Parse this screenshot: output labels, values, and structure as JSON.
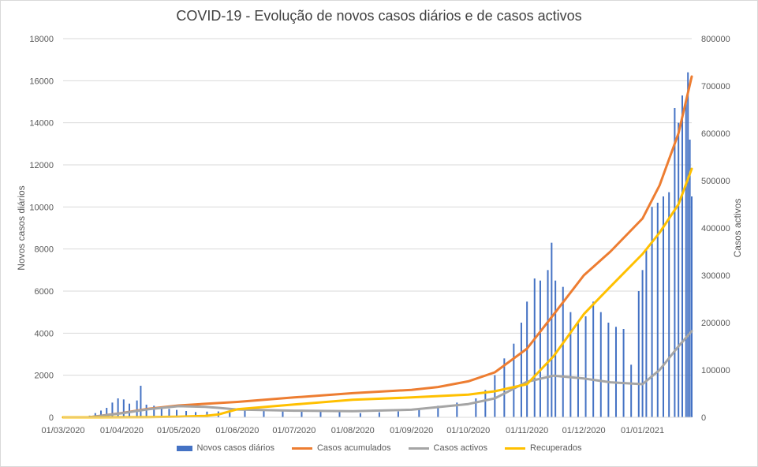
{
  "chart_data": {
    "type": "bar+line",
    "title": "COVID-19 - Evolução de novos casos diários e de casos activos",
    "ylabel_left": "Novos casos diários",
    "ylabel_right": "Casos activos",
    "ylim_left": [
      0,
      18000
    ],
    "ylim_right": [
      0,
      800000
    ],
    "left_ticks": [
      "0",
      "2000",
      "4000",
      "6000",
      "8000",
      "10000",
      "12000",
      "14000",
      "16000",
      "18000"
    ],
    "right_ticks": [
      "0",
      "100000",
      "200000",
      "300000",
      "400000",
      "500000",
      "600000",
      "700000",
      "800000"
    ],
    "x_range": [
      "01/03/2020",
      "27/01/2021"
    ],
    "x_ticks": [
      "01/03/2020",
      "01/04/2020",
      "01/05/2020",
      "01/06/2020",
      "01/07/2020",
      "01/08/2020",
      "01/09/2020",
      "01/10/2020",
      "01/11/2020",
      "01/12/2020",
      "01/01/2021"
    ],
    "colors": {
      "bars": "#4472c4",
      "accumulated": "#ed7d31",
      "active": "#a5a5a5",
      "recovered": "#ffc000",
      "grid": "#d9d9d9",
      "text": "#595959",
      "title": "#404040"
    },
    "legend": [
      "Novos casos diários",
      "Casos acumulados",
      "Casos activos",
      "Recuperados"
    ],
    "series": [
      {
        "name": "Novos casos diários",
        "axis": "left",
        "kind": "bar",
        "points": [
          [
            "02/03/2020",
            2
          ],
          [
            "10/03/2020",
            8
          ],
          [
            "15/03/2020",
            80
          ],
          [
            "18/03/2020",
            200
          ],
          [
            "21/03/2020",
            320
          ],
          [
            "24/03/2020",
            450
          ],
          [
            "27/03/2020",
            700
          ],
          [
            "30/03/2020",
            900
          ],
          [
            "02/04/2020",
            850
          ],
          [
            "05/04/2020",
            650
          ],
          [
            "09/04/2020",
            800
          ],
          [
            "11/04/2020",
            1500
          ],
          [
            "14/04/2020",
            600
          ],
          [
            "18/04/2020",
            550
          ],
          [
            "22/04/2020",
            500
          ],
          [
            "26/04/2020",
            400
          ],
          [
            "30/04/2020",
            350
          ],
          [
            "05/05/2020",
            300
          ],
          [
            "10/05/2020",
            250
          ],
          [
            "16/05/2020",
            270
          ],
          [
            "22/05/2020",
            280
          ],
          [
            "28/05/2020",
            300
          ],
          [
            "05/06/2020",
            330
          ],
          [
            "15/06/2020",
            350
          ],
          [
            "25/06/2020",
            370
          ],
          [
            "05/07/2020",
            360
          ],
          [
            "15/07/2020",
            320
          ],
          [
            "25/07/2020",
            250
          ],
          [
            "05/08/2020",
            200
          ],
          [
            "15/08/2020",
            240
          ],
          [
            "25/08/2020",
            280
          ],
          [
            "05/09/2020",
            400
          ],
          [
            "15/09/2020",
            550
          ],
          [
            "25/09/2020",
            700
          ],
          [
            "05/10/2020",
            900
          ],
          [
            "10/10/2020",
            1300
          ],
          [
            "15/10/2020",
            2000
          ],
          [
            "20/10/2020",
            2800
          ],
          [
            "25/10/2020",
            3500
          ],
          [
            "29/10/2020",
            4500
          ],
          [
            "01/11/2020",
            5500
          ],
          [
            "05/11/2020",
            6600
          ],
          [
            "08/11/2020",
            6500
          ],
          [
            "12/11/2020",
            7000
          ],
          [
            "14/11/2020",
            8300
          ],
          [
            "16/11/2020",
            6500
          ],
          [
            "20/11/2020",
            6200
          ],
          [
            "24/11/2020",
            5000
          ],
          [
            "28/11/2020",
            4500
          ],
          [
            "02/12/2020",
            4800
          ],
          [
            "06/12/2020",
            5500
          ],
          [
            "10/12/2020",
            5000
          ],
          [
            "14/12/2020",
            4500
          ],
          [
            "18/12/2020",
            4300
          ],
          [
            "22/12/2020",
            4200
          ],
          [
            "26/12/2020",
            2500
          ],
          [
            "30/12/2020",
            6000
          ],
          [
            "01/01/2021",
            7000
          ],
          [
            "03/01/2021",
            8000
          ],
          [
            "06/01/2021",
            10000
          ],
          [
            "09/01/2021",
            10200
          ],
          [
            "12/01/2021",
            10500
          ],
          [
            "15/01/2021",
            10700
          ],
          [
            "18/01/2021",
            14700
          ],
          [
            "20/01/2021",
            14000
          ],
          [
            "22/01/2021",
            15300
          ],
          [
            "24/01/2021",
            15000
          ],
          [
            "25/01/2021",
            16400
          ],
          [
            "26/01/2021",
            13200
          ],
          [
            "27/01/2021",
            10500
          ]
        ]
      },
      {
        "name": "Casos acumulados",
        "axis": "right",
        "kind": "line",
        "points": [
          [
            "01/03/2020",
            0
          ],
          [
            "15/03/2020",
            250
          ],
          [
            "01/04/2020",
            9000
          ],
          [
            "15/04/2020",
            18000
          ],
          [
            "01/05/2020",
            25000
          ],
          [
            "15/05/2020",
            28500
          ],
          [
            "01/06/2020",
            32500
          ],
          [
            "01/07/2020",
            42000
          ],
          [
            "01/08/2020",
            51000
          ],
          [
            "01/09/2020",
            58000
          ],
          [
            "15/09/2020",
            64000
          ],
          [
            "01/10/2020",
            76000
          ],
          [
            "15/10/2020",
            95000
          ],
          [
            "01/11/2020",
            145000
          ],
          [
            "15/11/2020",
            217000
          ],
          [
            "01/12/2020",
            300000
          ],
          [
            "15/12/2020",
            350000
          ],
          [
            "01/01/2021",
            420000
          ],
          [
            "10/01/2021",
            490000
          ],
          [
            "20/01/2021",
            600000
          ],
          [
            "27/01/2021",
            720000
          ]
        ]
      },
      {
        "name": "Casos activos",
        "axis": "right",
        "kind": "line",
        "points": [
          [
            "01/03/2020",
            0
          ],
          [
            "15/03/2020",
            200
          ],
          [
            "01/04/2020",
            8500
          ],
          [
            "15/04/2020",
            17000
          ],
          [
            "01/05/2020",
            23500
          ],
          [
            "15/05/2020",
            22000
          ],
          [
            "22/05/2020",
            20000
          ],
          [
            "01/06/2020",
            16500
          ],
          [
            "01/07/2020",
            14000
          ],
          [
            "01/08/2020",
            13000
          ],
          [
            "01/09/2020",
            16000
          ],
          [
            "01/10/2020",
            28000
          ],
          [
            "15/10/2020",
            40000
          ],
          [
            "01/11/2020",
            75000
          ],
          [
            "15/11/2020",
            88000
          ],
          [
            "01/12/2020",
            82000
          ],
          [
            "15/12/2020",
            74000
          ],
          [
            "01/01/2021",
            70000
          ],
          [
            "10/01/2021",
            100000
          ],
          [
            "20/01/2021",
            150000
          ],
          [
            "27/01/2021",
            182000
          ]
        ]
      },
      {
        "name": "Recuperados",
        "axis": "right",
        "kind": "line",
        "points": [
          [
            "01/03/2020",
            0
          ],
          [
            "15/03/2020",
            0
          ],
          [
            "01/04/2020",
            100
          ],
          [
            "15/04/2020",
            300
          ],
          [
            "01/05/2020",
            1300
          ],
          [
            "15/05/2020",
            3000
          ],
          [
            "22/05/2020",
            6000
          ],
          [
            "01/06/2020",
            17000
          ],
          [
            "01/07/2020",
            27000
          ],
          [
            "01/08/2020",
            37000
          ],
          [
            "01/09/2020",
            42000
          ],
          [
            "01/10/2020",
            48000
          ],
          [
            "15/10/2020",
            55000
          ],
          [
            "01/11/2020",
            70000
          ],
          [
            "15/11/2020",
            129000
          ],
          [
            "01/12/2020",
            218000
          ],
          [
            "15/12/2020",
            276000
          ],
          [
            "01/01/2021",
            345000
          ],
          [
            "10/01/2021",
            390000
          ],
          [
            "20/01/2021",
            450000
          ],
          [
            "27/01/2021",
            525000
          ]
        ]
      }
    ]
  }
}
